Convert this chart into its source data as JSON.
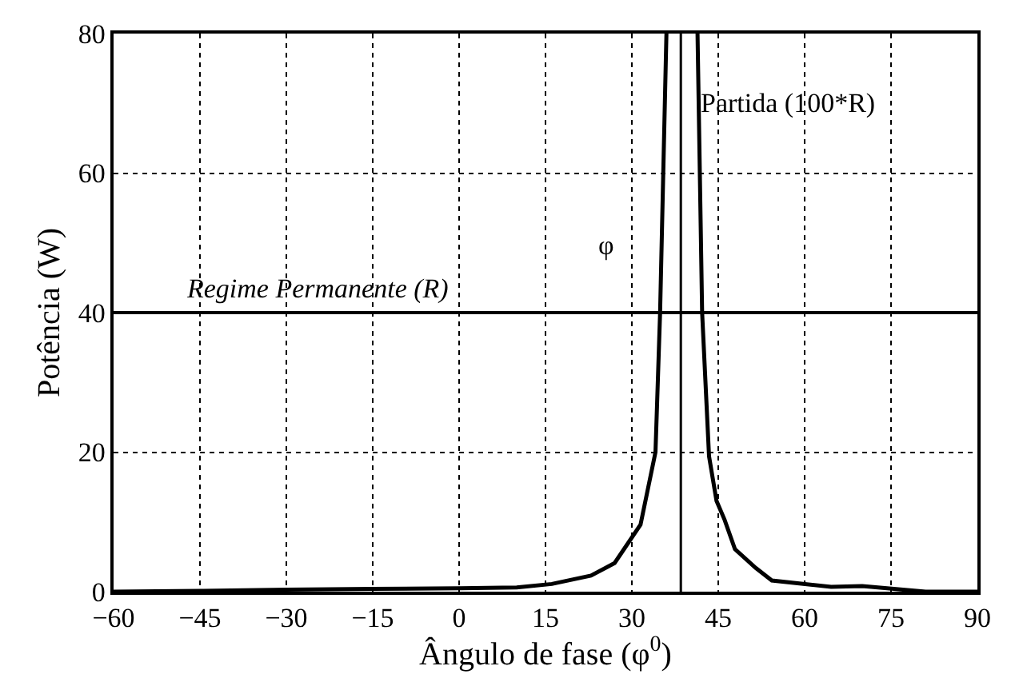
{
  "chart_data": {
    "type": "line",
    "xlabel": "Ângulo de fase (φ$^{0}$)",
    "ylabel": "Potência (W)",
    "series": [
      {
        "color": "#000000",
        "x": [
          -60,
          -45,
          -30,
          -15,
          0,
          10,
          16.1,
          22.9,
          27,
          31.5,
          34.1,
          34.9,
          36,
          null,
          41.4,
          42.2,
          43.4,
          44.7,
          46.1,
          47.9,
          51.5,
          54.3,
          64.6,
          70,
          81,
          90
        ],
        "values": [
          0,
          0.1,
          0.3,
          0.4,
          0.5,
          0.6,
          1.1,
          2.3,
          4.1,
          9.6,
          20,
          40,
          80,
          null,
          80,
          40,
          19.4,
          13,
          10.3,
          6.1,
          3.4,
          1.6,
          0.7,
          0.8,
          0,
          0
        ]
      }
    ],
    "xlim": [
      -60,
      90
    ],
    "ylim": [
      0,
      80
    ],
    "xticks": [
      {
        "value": -60,
        "label": "−60"
      },
      {
        "value": -45,
        "label": "−45"
      },
      {
        "value": -30,
        "label": "−30"
      },
      {
        "value": -15,
        "label": "−15"
      },
      0,
      15,
      30,
      45,
      60,
      75,
      90
    ],
    "yticks": [
      0,
      20,
      40,
      60,
      80
    ],
    "grid": true,
    "line_style": "solid",
    "marker": "none",
    "ref_lines": [
      {
        "axis": "y",
        "value": 40,
        "label": "Regime Permanente (R)",
        "color": "#000000"
      },
      {
        "axis": "x",
        "value": 38.5,
        "label": "φ",
        "color": "#000000"
      }
    ],
    "annotations": [
      {
        "text": "Partida (100*R)",
        "x": 41.5,
        "y": 70
      }
    ]
  }
}
